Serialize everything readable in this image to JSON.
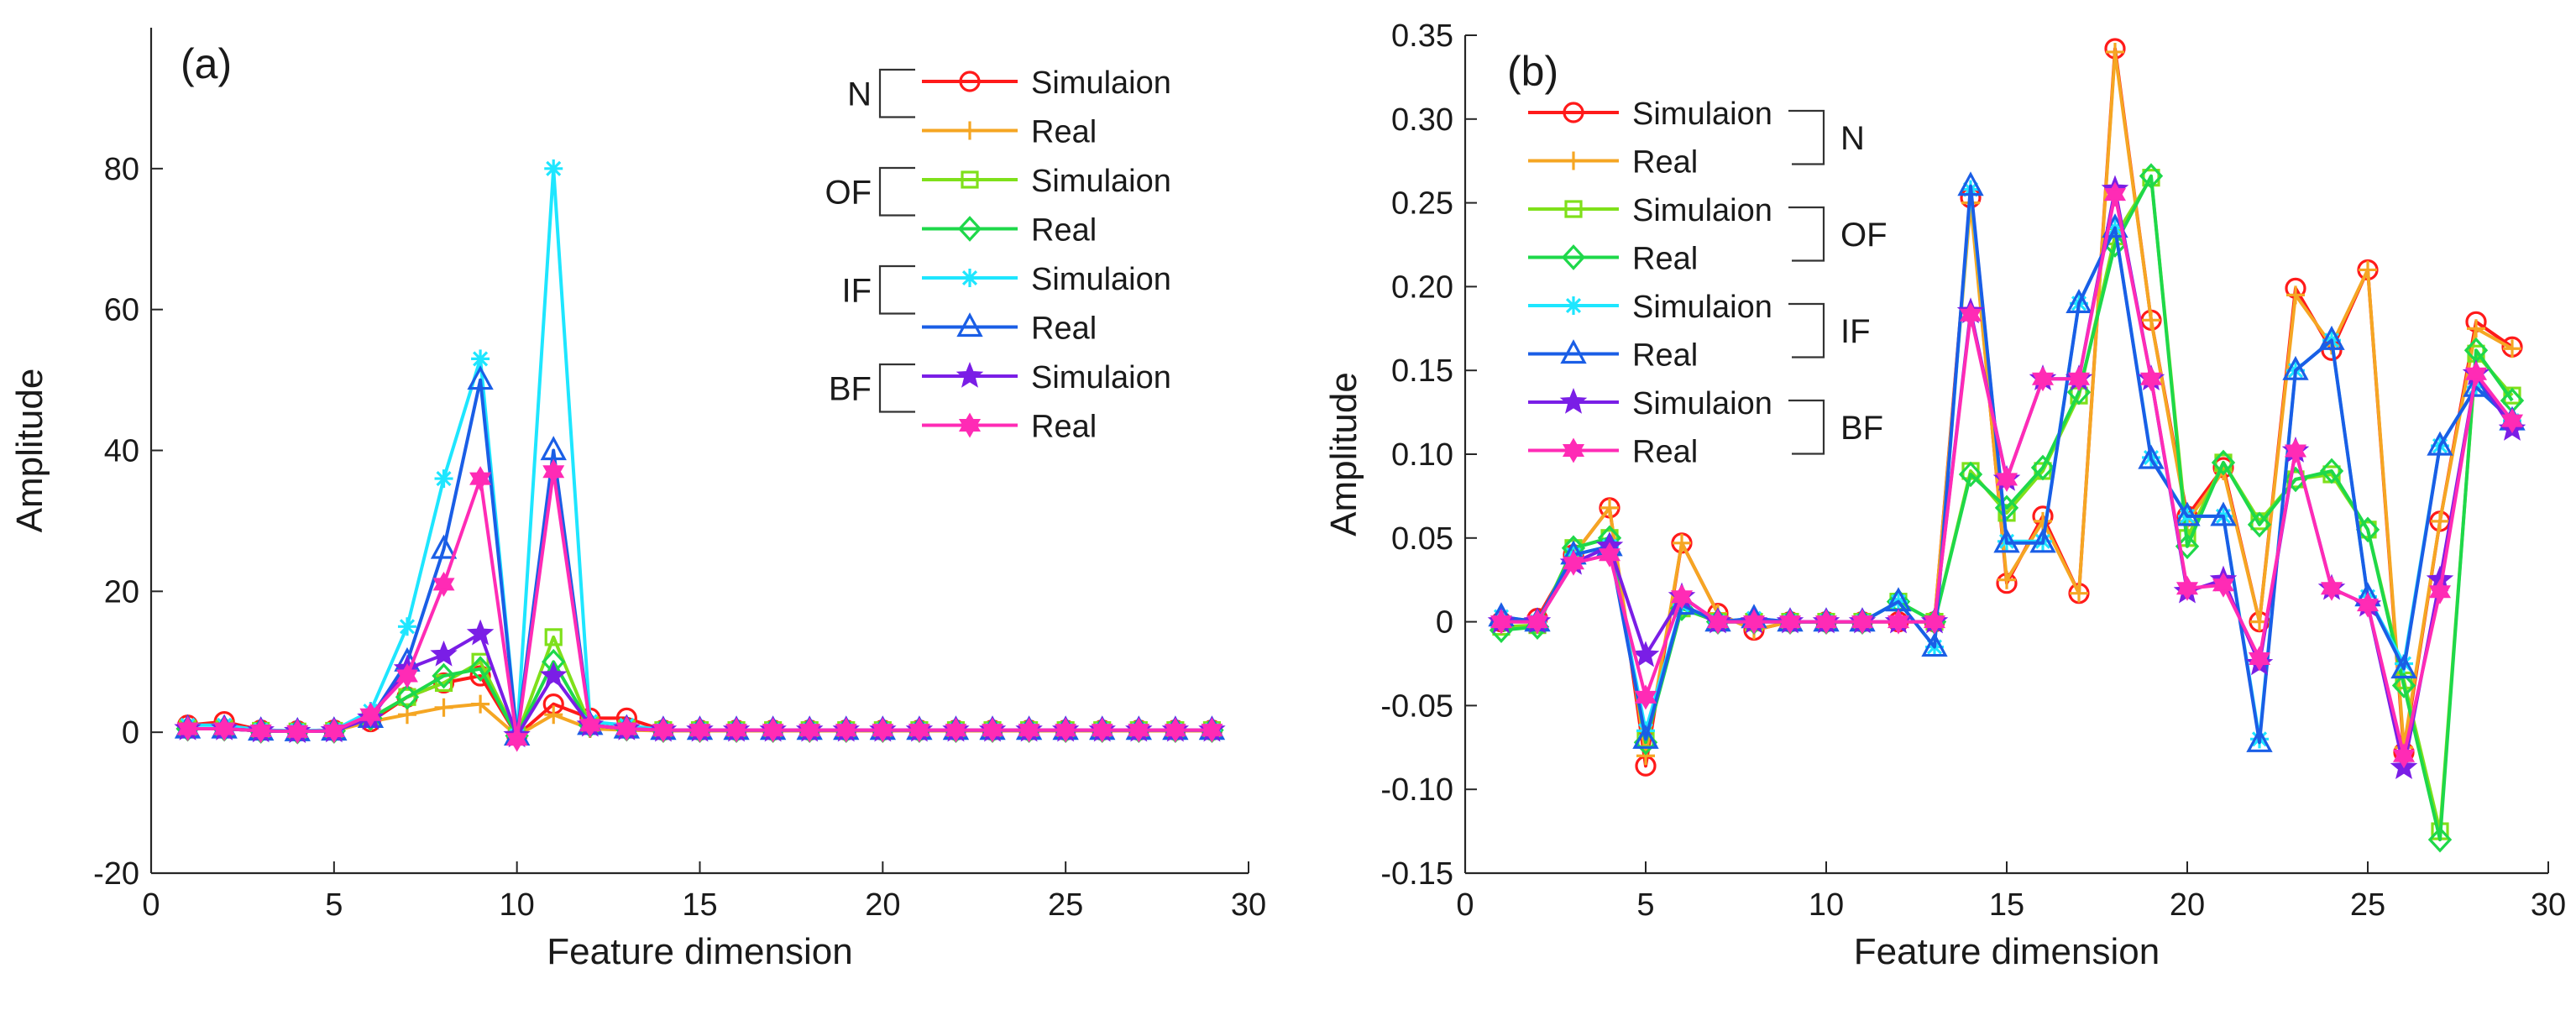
{
  "figure": {
    "description_free": true
  },
  "chart_data": [
    {
      "type": "line",
      "panel_label": "(a)",
      "xlabel": "Feature dimension",
      "ylabel": "Amplitude",
      "xlim": [
        0,
        30
      ],
      "ylim": [
        -20,
        100
      ],
      "xticks": [
        0,
        5,
        10,
        15,
        20,
        25,
        30
      ],
      "yticks": [
        -20,
        0,
        20,
        40,
        60,
        80
      ],
      "ytick_labels": [
        "-20",
        "0",
        "20",
        "40",
        "60",
        "80"
      ],
      "legend_position": "top-right",
      "legend_groups": [
        {
          "label": "N",
          "entries": [
            0,
            1
          ]
        },
        {
          "label": "OF",
          "entries": [
            2,
            3
          ]
        },
        {
          "label": "IF",
          "entries": [
            4,
            5
          ]
        },
        {
          "label": "BF",
          "entries": [
            6,
            7
          ]
        }
      ],
      "x": [
        1,
        2,
        3,
        4,
        5,
        6,
        7,
        8,
        9,
        10,
        11,
        12,
        13,
        14,
        15,
        16,
        17,
        18,
        19,
        20,
        21,
        22,
        23,
        24,
        25,
        26,
        27,
        28,
        29
      ],
      "series": [
        {
          "name": "Simulaion",
          "group": "N",
          "color": "#ff1a1a",
          "marker": "circle",
          "values": [
            1,
            1.5,
            0.3,
            0.2,
            0.3,
            1.5,
            5,
            7,
            8,
            -0.5,
            4,
            2,
            2,
            0.3,
            0.3,
            0.3,
            0.3,
            0.3,
            0.3,
            0.3,
            0.3,
            0.3,
            0.3,
            0.3,
            0.3,
            0.3,
            0.3,
            0.3,
            0.3
          ]
        },
        {
          "name": "Real",
          "group": "N",
          "color": "#f5a623",
          "marker": "plus",
          "values": [
            0.5,
            0.5,
            0.2,
            0.1,
            0.2,
            1.5,
            2.5,
            3.5,
            4,
            -0.5,
            2.5,
            0.5,
            0.3,
            0.2,
            0.2,
            0.2,
            0.2,
            0.2,
            0.2,
            0.2,
            0.2,
            0.2,
            0.2,
            0.2,
            0.2,
            0.2,
            0.2,
            0.2,
            0.2
          ]
        },
        {
          "name": "Simulaion",
          "group": "OF",
          "color": "#7fe01a",
          "marker": "square",
          "values": [
            0.5,
            0.5,
            0.2,
            0.1,
            0.2,
            2,
            5,
            7,
            10,
            -0.5,
            13.5,
            1,
            0.5,
            0.3,
            0.3,
            0.3,
            0.3,
            0.3,
            0.3,
            0.3,
            0.3,
            0.3,
            0.3,
            0.3,
            0.3,
            0.3,
            0.3,
            0.3,
            0.3
          ]
        },
        {
          "name": "Real",
          "group": "OF",
          "color": "#1ed84a",
          "marker": "diamond",
          "values": [
            0.5,
            0.5,
            0.2,
            0.1,
            0.2,
            2,
            5,
            8,
            9,
            -0.5,
            10,
            1,
            0.5,
            0.3,
            0.3,
            0.3,
            0.3,
            0.3,
            0.3,
            0.3,
            0.3,
            0.3,
            0.3,
            0.3,
            0.3,
            0.3,
            0.3,
            0.3,
            0.3
          ]
        },
        {
          "name": "Simulaion",
          "group": "IF",
          "color": "#1ee6ff",
          "marker": "asterisk",
          "values": [
            1,
            1,
            0.3,
            0.2,
            0.3,
            3,
            15,
            36,
            53,
            -0.5,
            80,
            1.5,
            1,
            0.3,
            0.3,
            0.3,
            0.3,
            0.3,
            0.3,
            0.3,
            0.3,
            0.3,
            0.3,
            0.3,
            0.3,
            0.3,
            0.3,
            0.3,
            0.3
          ]
        },
        {
          "name": "Real",
          "group": "IF",
          "color": "#1a5ee6",
          "marker": "triangle",
          "values": [
            0.5,
            0.5,
            0.2,
            0.1,
            0.2,
            2,
            10,
            26,
            50,
            -0.5,
            40,
            1,
            0.5,
            0.3,
            0.3,
            0.3,
            0.3,
            0.3,
            0.3,
            0.3,
            0.3,
            0.3,
            0.3,
            0.3,
            0.3,
            0.3,
            0.3,
            0.3,
            0.3
          ]
        },
        {
          "name": "Simulaion",
          "group": "BF",
          "color": "#7a1ee6",
          "marker": "star",
          "values": [
            0.5,
            0.5,
            0.2,
            0.1,
            0.2,
            2,
            9,
            11,
            14,
            -0.5,
            8,
            1,
            0.5,
            0.3,
            0.3,
            0.3,
            0.3,
            0.3,
            0.3,
            0.3,
            0.3,
            0.3,
            0.3,
            0.3,
            0.3,
            0.3,
            0.3,
            0.3,
            0.3
          ]
        },
        {
          "name": "Real",
          "group": "BF",
          "color": "#ff2bb5",
          "marker": "hexagram",
          "values": [
            0.5,
            0.5,
            0.2,
            0.1,
            0.2,
            2.5,
            8,
            21,
            36,
            -1,
            37,
            1,
            0.5,
            0.3,
            0.3,
            0.3,
            0.3,
            0.3,
            0.3,
            0.3,
            0.3,
            0.3,
            0.3,
            0.3,
            0.3,
            0.3,
            0.3,
            0.3,
            0.3
          ]
        }
      ]
    },
    {
      "type": "line",
      "panel_label": "(b)",
      "xlabel": "Feature dimension",
      "ylabel": "Amplitude",
      "xlim": [
        0,
        30
      ],
      "ylim": [
        -0.15,
        0.35
      ],
      "xticks": [
        0,
        5,
        10,
        15,
        20,
        25,
        30
      ],
      "yticks": [
        -0.15,
        -0.1,
        -0.05,
        0,
        0.05,
        0.1,
        0.15,
        0.2,
        0.25,
        0.3,
        0.35
      ],
      "ytick_labels": [
        "-0.15",
        "-0.10",
        "-0.05",
        "0",
        "0.05",
        "0.10",
        "0.15",
        "0.20",
        "0.25",
        "0.30",
        "0.35"
      ],
      "legend_position": "top-left",
      "legend_groups": [
        {
          "label": "N",
          "entries": [
            0,
            1
          ]
        },
        {
          "label": "OF",
          "entries": [
            2,
            3
          ]
        },
        {
          "label": "IF",
          "entries": [
            4,
            5
          ]
        },
        {
          "label": "BF",
          "entries": [
            6,
            7
          ]
        }
      ],
      "x": [
        1,
        2,
        3,
        4,
        5,
        6,
        7,
        8,
        9,
        10,
        11,
        12,
        13,
        14,
        15,
        16,
        17,
        18,
        19,
        20,
        21,
        22,
        23,
        24,
        25,
        26,
        27,
        28,
        29
      ],
      "series": [
        {
          "name": "Simulaion",
          "group": "N",
          "color": "#ff1a1a",
          "marker": "circle",
          "values": [
            0,
            0.002,
            0.04,
            0.068,
            -0.086,
            0.047,
            0.005,
            -0.005,
            0,
            0,
            0,
            0,
            0,
            0.253,
            0.023,
            0.063,
            0.017,
            0.342,
            0.18,
            0.063,
            0.092,
            0,
            0.199,
            0.162,
            0.21,
            -0.078,
            0.06,
            0.179,
            0.164
          ]
        },
        {
          "name": "Real",
          "group": "N",
          "color": "#f5a623",
          "marker": "plus",
          "values": [
            0,
            0,
            0.04,
            0.068,
            -0.08,
            0.047,
            0.005,
            -0.005,
            0,
            0,
            0,
            0,
            0,
            0.25,
            0.025,
            0.06,
            0.017,
            0.34,
            0.18,
            0.06,
            0.09,
            0,
            0.195,
            0.165,
            0.21,
            -0.075,
            0.06,
            0.175,
            0.163
          ]
        },
        {
          "name": "Simulaion",
          "group": "OF",
          "color": "#7fe01a",
          "marker": "square",
          "values": [
            -0.003,
            -0.002,
            0.044,
            0.05,
            -0.07,
            0.008,
            0,
            0,
            0,
            0,
            0,
            0.012,
            0,
            0.09,
            0.065,
            0.09,
            0.135,
            0.23,
            0.265,
            0.05,
            0.095,
            0.06,
            0.085,
            0.088,
            0.055,
            -0.035,
            -0.125,
            0.16,
            0.135
          ]
        },
        {
          "name": "Real",
          "group": "OF",
          "color": "#1ed84a",
          "marker": "diamond",
          "values": [
            -0.005,
            -0.003,
            0.044,
            0.05,
            -0.072,
            0.008,
            0,
            0,
            0,
            0,
            0,
            0.012,
            0,
            0.088,
            0.068,
            0.092,
            0.137,
            0.225,
            0.266,
            0.045,
            0.095,
            0.058,
            0.085,
            0.09,
            0.055,
            -0.038,
            -0.13,
            0.162,
            0.132
          ]
        },
        {
          "name": "Simulaion",
          "group": "IF",
          "color": "#1ee6ff",
          "marker": "asterisk",
          "values": [
            0.003,
            0,
            0.04,
            0.045,
            -0.065,
            0.01,
            0,
            0.002,
            0,
            0,
            0,
            0.012,
            -0.015,
            0.258,
            0.048,
            0.048,
            0.19,
            0.235,
            0.098,
            0.063,
            0.063,
            -0.07,
            0.15,
            0.168,
            0.015,
            -0.025,
            0.105,
            0.14,
            0.12
          ]
        },
        {
          "name": "Real",
          "group": "IF",
          "color": "#1a5ee6",
          "marker": "triangle",
          "values": [
            0.003,
            0,
            0.04,
            0.045,
            -0.07,
            0.01,
            0,
            0.002,
            0,
            0,
            0,
            0.012,
            -0.015,
            0.26,
            0.047,
            0.047,
            0.19,
            0.235,
            0.097,
            0.063,
            0.063,
            -0.072,
            0.15,
            0.168,
            0.015,
            -0.028,
            0.105,
            0.14,
            0.12
          ]
        },
        {
          "name": "Simulaion",
          "group": "BF",
          "color": "#7a1ee6",
          "marker": "star",
          "values": [
            0,
            0,
            0.035,
            0.045,
            -0.02,
            0.015,
            0,
            0,
            0,
            0,
            0,
            0,
            0,
            0.185,
            0.085,
            0.145,
            0.145,
            0.258,
            0.145,
            0.018,
            0.025,
            -0.025,
            0.102,
            0.02,
            0.01,
            -0.087,
            0.025,
            0.148,
            0.115
          ]
        },
        {
          "name": "Real",
          "group": "BF",
          "color": "#ff2bb5",
          "marker": "hexagram",
          "values": [
            0,
            0,
            0.035,
            0.04,
            -0.045,
            0.015,
            0,
            0,
            0,
            0,
            0,
            0,
            0,
            0.183,
            0.085,
            0.145,
            0.145,
            0.255,
            0.145,
            0.02,
            0.022,
            -0.022,
            0.102,
            0.02,
            0.01,
            -0.08,
            0.018,
            0.148,
            0.12
          ]
        }
      ]
    }
  ]
}
